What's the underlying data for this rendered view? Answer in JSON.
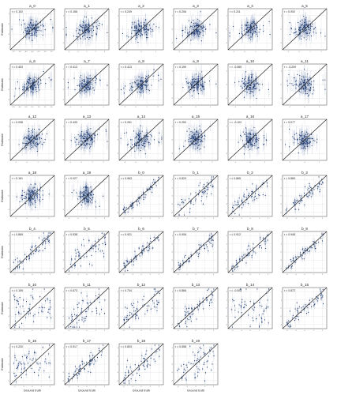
{
  "figure": {
    "ylabel": "Estimate",
    "xlabel": "Ground truth"
  },
  "chart_data": [
    {
      "type": "scatter",
      "title": "a_0",
      "r_label": "r = 0.102",
      "r": 0.102,
      "x_ticks": [
        "-1.5",
        "-1.0",
        "-0.5",
        "0.0",
        "0.5",
        "1.0",
        "1.5"
      ],
      "y_ticks": [
        "1",
        "0",
        "-1",
        "-2"
      ],
      "grid": true,
      "identity_line": true
    },
    {
      "type": "scatter",
      "title": "a_1",
      "r_label": "r = 0.156",
      "r": 0.156,
      "x_ticks": [
        "-1",
        "0",
        "1",
        "2",
        "3"
      ],
      "y_ticks": [
        "1",
        "0",
        "-1"
      ],
      "grid": true,
      "identity_line": true
    },
    {
      "type": "scatter",
      "title": "a_2",
      "r_label": "r = 0.249",
      "r": 0.249,
      "x_ticks": [
        "-1",
        "0",
        "1"
      ],
      "y_ticks": [
        "1",
        "0",
        "-1"
      ],
      "grid": true,
      "identity_line": true
    },
    {
      "type": "scatter",
      "title": "a_3",
      "r_label": "r = 0.206",
      "r": 0.206,
      "x_ticks": [
        "-1",
        "0",
        "1",
        "2"
      ],
      "y_ticks": [
        "1",
        "0",
        "-1"
      ],
      "grid": true,
      "identity_line": true
    },
    {
      "type": "scatter",
      "title": "a_4",
      "r_label": "r = 0.211",
      "r": 0.211,
      "x_ticks": [
        "-1",
        "0",
        "1",
        "2"
      ],
      "y_ticks": [
        "1",
        "0",
        "-1"
      ],
      "grid": true,
      "identity_line": true
    },
    {
      "type": "scatter",
      "title": "a_5",
      "r_label": "r = 0.092",
      "r": 0.092,
      "x_ticks": [
        "-1",
        "0",
        "1",
        "2"
      ],
      "y_ticks": [
        "1",
        "0",
        "-1"
      ],
      "grid": true,
      "identity_line": true
    },
    {
      "type": "scatter",
      "title": "a_6",
      "r_label": "r = 0.403",
      "r": 0.403,
      "x_ticks": [
        "-1.0",
        "-0.5",
        "0.0",
        "0.5",
        "1.0",
        "1.5",
        "2.0"
      ],
      "y_ticks": [
        "2",
        "1",
        "0",
        "-1"
      ],
      "grid": true,
      "identity_line": true
    },
    {
      "type": "scatter",
      "title": "a_7",
      "r_label": "r = 0.413",
      "r": 0.413,
      "x_ticks": [
        "-1",
        "0",
        "1",
        "2"
      ],
      "y_ticks": [
        "2",
        "1",
        "0",
        "-1"
      ],
      "grid": true,
      "identity_line": true
    },
    {
      "type": "scatter",
      "title": "a_8",
      "r_label": "r = 0.413",
      "r": 0.413,
      "x_ticks": [
        "-1",
        "0",
        "1",
        "2"
      ],
      "y_ticks": [
        "2",
        "1",
        "0",
        "-1"
      ],
      "grid": true,
      "identity_line": true
    },
    {
      "type": "scatter",
      "title": "a_9",
      "r_label": "r = 0.159",
      "r": 0.159,
      "x_ticks": [
        "-1",
        "0",
        "1"
      ],
      "y_ticks": [
        "1",
        "0",
        "-1"
      ],
      "grid": true,
      "identity_line": true
    },
    {
      "type": "scatter",
      "title": "a_10",
      "r_label": "r = -0.085",
      "r": -0.085,
      "x_ticks": [
        "-1",
        "0",
        "1"
      ],
      "y_ticks": [
        "1",
        "0",
        "-1"
      ],
      "grid": true,
      "identity_line": true
    },
    {
      "type": "scatter",
      "title": "a_11",
      "r_label": "r = -0.209",
      "r": -0.209,
      "x_ticks": [
        "-1",
        "0",
        "1"
      ],
      "y_ticks": [
        "1",
        "0",
        "-1"
      ],
      "grid": true,
      "identity_line": true
    },
    {
      "type": "scatter",
      "title": "a_12",
      "r_label": "r = 0.098",
      "r": 0.098,
      "x_ticks": [
        "-1",
        "0",
        "1",
        "2"
      ],
      "y_ticks": [
        "1",
        "0",
        "-1"
      ],
      "grid": true,
      "identity_line": true
    },
    {
      "type": "scatter",
      "title": "a_13",
      "r_label": "r = 0.433",
      "r": 0.433,
      "x_ticks": [
        "-1",
        "0",
        "1",
        "2"
      ],
      "y_ticks": [
        "1",
        "0",
        "-1"
      ],
      "grid": true,
      "identity_line": true
    },
    {
      "type": "scatter",
      "title": "a_14",
      "r_label": "r = 0.261",
      "r": 0.261,
      "x_ticks": [
        "-1",
        "0",
        "1",
        "2"
      ],
      "y_ticks": [
        "1",
        "0",
        "-1"
      ],
      "grid": true,
      "identity_line": true
    },
    {
      "type": "scatter",
      "title": "a_15",
      "r_label": "r = 0.253",
      "r": 0.253,
      "x_ticks": [
        "-1",
        "0",
        "1",
        "2"
      ],
      "y_ticks": [
        "1",
        "0",
        "-1"
      ],
      "grid": true,
      "identity_line": true
    },
    {
      "type": "scatter",
      "title": "a_16",
      "r_label": "r = -0.102",
      "r": -0.102,
      "x_ticks": [
        "-1",
        "0",
        "1"
      ],
      "y_ticks": [
        "1",
        "0",
        "-1"
      ],
      "grid": true,
      "identity_line": true
    },
    {
      "type": "scatter",
      "title": "a_17",
      "r_label": "r = 0.077",
      "r": 0.077,
      "x_ticks": [
        "-1",
        "0",
        "1"
      ],
      "y_ticks": [
        "1",
        "0",
        "-1"
      ],
      "grid": true,
      "identity_line": true
    },
    {
      "type": "scatter",
      "title": "a_18",
      "r_label": "r = 0.161",
      "r": 0.161,
      "x_ticks": [
        "-1",
        "0",
        "1",
        "2"
      ],
      "y_ticks": [
        "1",
        "0",
        "-1"
      ],
      "grid": true,
      "identity_line": true
    },
    {
      "type": "scatter",
      "title": "a_19",
      "r_label": "r = 0.027",
      "r": 0.027,
      "x_ticks": [
        "-1",
        "0",
        "1",
        "2",
        "3"
      ],
      "y_ticks": [
        "1",
        "0",
        "-1"
      ],
      "grid": true,
      "identity_line": true
    },
    {
      "type": "scatter",
      "title": "b_0",
      "r_label": "r = 0.963",
      "r": 0.963,
      "x_ticks": [
        "-2",
        "-1",
        "0",
        "1",
        "2"
      ],
      "y_ticks": [
        "2",
        "1",
        "0",
        "-1",
        "-2"
      ],
      "grid": true,
      "identity_line": true
    },
    {
      "type": "scatter",
      "title": "b_1",
      "r_label": "r = 0.820",
      "r": 0.82,
      "x_ticks": [
        "-2",
        "-1",
        "0",
        "1",
        "2"
      ],
      "y_ticks": [
        "2",
        "1",
        "0",
        "-1",
        "-2"
      ],
      "grid": true,
      "identity_line": true
    },
    {
      "type": "scatter",
      "title": "b_2",
      "r_label": "r = 0.865",
      "r": 0.865,
      "x_ticks": [
        "-2",
        "-1",
        "0",
        "1",
        "2"
      ],
      "y_ticks": [
        "2",
        "1",
        "0",
        "-1",
        "-2"
      ],
      "grid": true,
      "identity_line": true
    },
    {
      "type": "scatter",
      "title": "b_3",
      "r_label": "r = 0.889",
      "r": 0.889,
      "x_ticks": [
        "-2",
        "-1",
        "0",
        "1",
        "2"
      ],
      "y_ticks": [
        "2",
        "1",
        "0",
        "-1",
        "-2"
      ],
      "grid": true,
      "identity_line": true
    },
    {
      "type": "scatter",
      "title": "b_4",
      "r_label": "r = 0.869",
      "r": 0.869,
      "x_ticks": [
        "-2",
        "-1",
        "0",
        "1",
        "2"
      ],
      "y_ticks": [
        "2",
        "1",
        "0",
        "-1",
        "-2"
      ],
      "grid": true,
      "identity_line": true
    },
    {
      "type": "scatter",
      "title": "b_5",
      "r_label": "r = 0.538",
      "r": 0.538,
      "x_ticks": [
        "-2",
        "-1",
        "0",
        "1",
        "2"
      ],
      "y_ticks": [
        "2",
        "1",
        "0",
        "-1",
        "-2"
      ],
      "grid": true,
      "identity_line": true
    },
    {
      "type": "scatter",
      "title": "b_6",
      "r_label": "r = 0.921",
      "r": 0.921,
      "x_ticks": [
        "-2",
        "-1",
        "0",
        "1",
        "2"
      ],
      "y_ticks": [
        "2",
        "1",
        "0",
        "-1",
        "-2"
      ],
      "grid": true,
      "identity_line": true
    },
    {
      "type": "scatter",
      "title": "b_7",
      "r_label": "r = 0.906",
      "r": 0.906,
      "x_ticks": [
        "-2",
        "-1",
        "0",
        "1",
        "2"
      ],
      "y_ticks": [
        "2",
        "1",
        "0",
        "-1",
        "-2"
      ],
      "grid": true,
      "identity_line": true
    },
    {
      "type": "scatter",
      "title": "b_8",
      "r_label": "r = 0.912",
      "r": 0.912,
      "x_ticks": [
        "-2",
        "-1",
        "0",
        "1",
        "2"
      ],
      "y_ticks": [
        "2",
        "1",
        "0",
        "-1",
        "-2"
      ],
      "grid": true,
      "identity_line": true
    },
    {
      "type": "scatter",
      "title": "b_9",
      "r_label": "r = 0.948",
      "r": 0.948,
      "x_ticks": [
        "-2",
        "-1",
        "0",
        "1",
        "2"
      ],
      "y_ticks": [
        "2",
        "1",
        "0",
        "-1",
        "-2"
      ],
      "grid": true,
      "identity_line": true
    },
    {
      "type": "scatter",
      "title": "b_10",
      "r_label": "r = 0.159",
      "r": 0.159,
      "x_ticks": [
        "-2",
        "-1",
        "0",
        "1",
        "2"
      ],
      "y_ticks": [
        "2",
        "1",
        "0",
        "-1",
        "-2"
      ],
      "grid": true,
      "identity_line": true
    },
    {
      "type": "scatter",
      "title": "b_11",
      "r_label": "r = 0.673",
      "r": 0.673,
      "x_ticks": [
        "-2",
        "-1",
        "0",
        "1",
        "2"
      ],
      "y_ticks": [
        "2",
        "1",
        "0",
        "-1",
        "-2"
      ],
      "grid": true,
      "identity_line": true
    },
    {
      "type": "scatter",
      "title": "b_12",
      "r_label": "r = 0.734",
      "r": 0.734,
      "x_ticks": [
        "-2",
        "-1",
        "0",
        "1",
        "2"
      ],
      "y_ticks": [
        "2",
        "1",
        "0",
        "-1",
        "-2"
      ],
      "grid": true,
      "identity_line": true
    },
    {
      "type": "scatter",
      "title": "b_13",
      "r_label": "r = 0.866",
      "r": 0.866,
      "x_ticks": [
        "-2",
        "-1",
        "0",
        "1",
        "2"
      ],
      "y_ticks": [
        "2",
        "1",
        "0",
        "-1",
        "-2"
      ],
      "grid": true,
      "identity_line": true
    },
    {
      "type": "scatter",
      "title": "b_14",
      "r_label": "r = -0.003",
      "r": -0.003,
      "x_ticks": [
        "-2",
        "-1",
        "0",
        "1",
        "2"
      ],
      "y_ticks": [
        "2",
        "1",
        "0",
        "-1",
        "-2"
      ],
      "grid": true,
      "identity_line": true
    },
    {
      "type": "scatter",
      "title": "b_15",
      "r_label": "r = 0.872",
      "r": 0.872,
      "x_ticks": [
        "-2",
        "-1",
        "0",
        "1",
        "2"
      ],
      "y_ticks": [
        "2",
        "1",
        "0",
        "-1",
        "-2"
      ],
      "grid": true,
      "identity_line": true
    },
    {
      "type": "scatter",
      "title": "b_16",
      "r_label": "r = 0.220",
      "r": 0.22,
      "x_ticks": [
        "-2",
        "-1",
        "0",
        "1",
        "2"
      ],
      "y_ticks": [
        "2",
        "1",
        "0",
        "-1",
        "-2"
      ],
      "grid": true,
      "identity_line": true
    },
    {
      "type": "scatter",
      "title": "b_17",
      "r_label": "r = 0.917",
      "r": 0.917,
      "x_ticks": [
        "-2",
        "-1",
        "0",
        "1",
        "2"
      ],
      "y_ticks": [
        "2",
        "1",
        "0",
        "-1",
        "-2"
      ],
      "grid": true,
      "identity_line": true
    },
    {
      "type": "scatter",
      "title": "b_18",
      "r_label": "r = 0.803",
      "r": 0.803,
      "x_ticks": [
        "-2",
        "-1",
        "0",
        "1",
        "2"
      ],
      "y_ticks": [
        "2",
        "1",
        "0",
        "-1",
        "-2"
      ],
      "grid": true,
      "identity_line": true
    },
    {
      "type": "scatter",
      "title": "b_19",
      "r_label": "r = 0.558",
      "r": 0.558,
      "x_ticks": [
        "-2",
        "-1",
        "0",
        "1",
        "2"
      ],
      "y_ticks": [
        "2",
        "1",
        "0",
        "-1",
        "-2"
      ],
      "grid": true,
      "identity_line": true
    }
  ]
}
